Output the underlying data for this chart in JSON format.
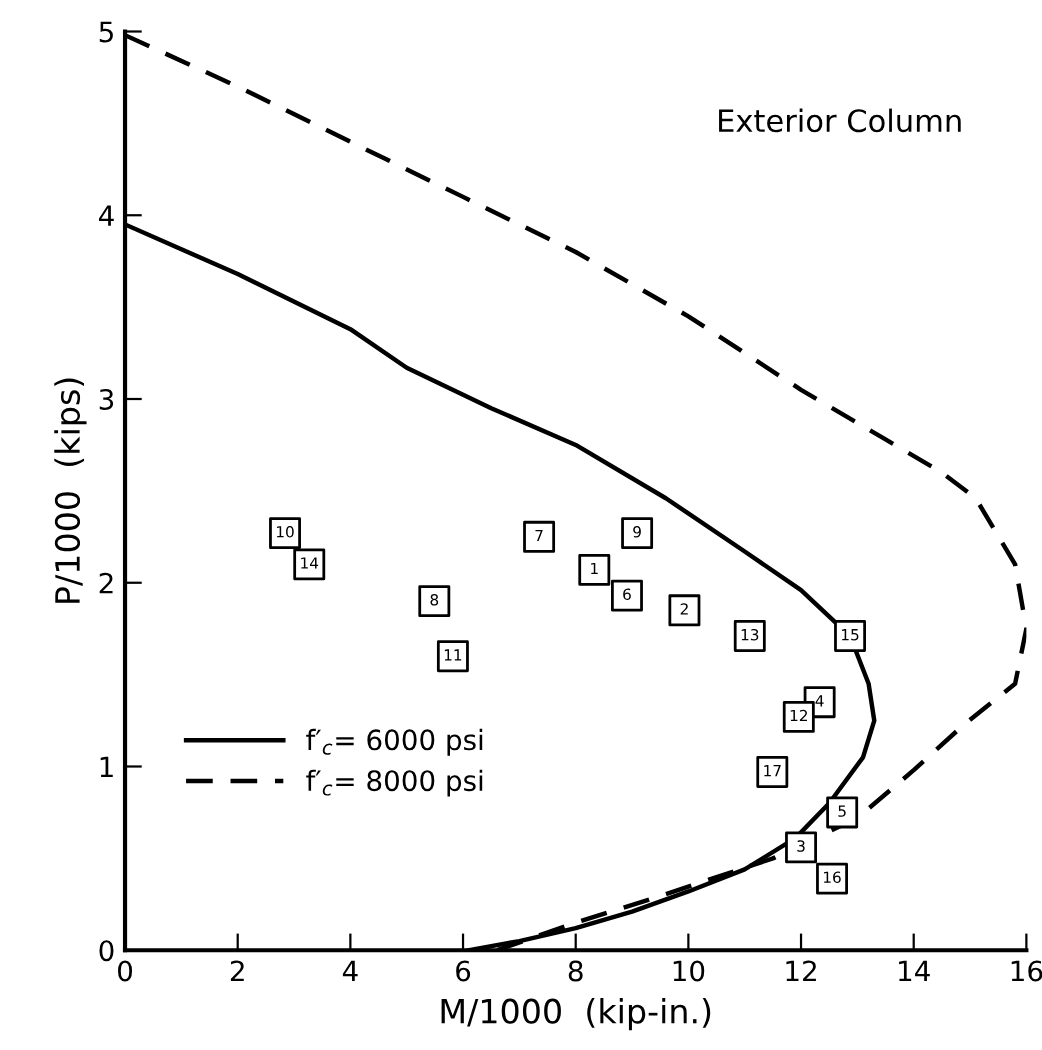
{
  "chart_data": {
    "type": "line",
    "xlabel": "M/1000  (kip-in.)",
    "ylabel": "P/1000  (kips)",
    "xlim": [
      0,
      16
    ],
    "ylim": [
      0,
      5
    ],
    "xticks": [
      0,
      2,
      4,
      6,
      8,
      10,
      12,
      14,
      16
    ],
    "yticks": [
      0,
      1,
      2,
      3,
      4,
      5
    ],
    "grid": false,
    "legend": "bottom left",
    "marker": "none",
    "series": [
      {
        "name": "f′$_{c}$= 6000 psi",
        "line_style": "solid",
        "color": "#000000",
        "x": [
          0,
          2,
          4,
          5,
          6.5,
          8,
          9.6,
          11,
          12,
          12.87,
          13.2,
          13.3,
          13.1,
          12.5,
          11.9,
          11,
          10,
          9,
          8,
          7,
          6.1
        ],
        "values": [
          3.95,
          3.68,
          3.38,
          3.17,
          2.95,
          2.75,
          2.46,
          2.17,
          1.96,
          1.71,
          1.45,
          1.25,
          1.05,
          0.8,
          0.61,
          0.44,
          0.32,
          0.21,
          0.12,
          0.05,
          0
        ]
      },
      {
        "name": "f′$_{c}$= 8000 psi",
        "line_style": "dashed",
        "color": "#000000",
        "x": [
          0,
          2,
          4,
          6,
          8,
          10,
          12,
          13.5,
          14.5,
          15.1,
          15.8,
          16,
          15.8,
          14.9,
          14,
          13,
          11.5,
          9.35,
          8,
          6.6
        ],
        "values": [
          4.98,
          4.7,
          4.4,
          4.1,
          3.8,
          3.45,
          3.05,
          2.78,
          2.6,
          2.46,
          2.1,
          1.75,
          1.45,
          1.23,
          0.98,
          0.72,
          0.5,
          0.28,
          0.15,
          0
        ]
      },
      {
        "type": "scatter",
        "marker": "square",
        "color": "#000000",
        "x": [
          2.84,
          3.27,
          5.49,
          5.82,
          7.35,
          8.33,
          9.09,
          8.91,
          9.93,
          11.09,
          12.87,
          12.33,
          11.96,
          11.49,
          12.73,
          12.0,
          12.55
        ],
        "values": [
          2.27,
          2.1,
          1.9,
          1.6,
          2.25,
          2.07,
          2.27,
          1.93,
          1.85,
          1.71,
          1.71,
          1.35,
          1.27,
          0.97,
          0.75,
          0.56,
          0.39
        ]
      }
    ],
    "annotations": [
      "Exterior Column",
      {
        "text": "10",
        "x": 2.84,
        "y": 2.27
      },
      {
        "text": "14",
        "x": 3.27,
        "y": 2.1
      },
      {
        "text": "8",
        "x": 5.49,
        "y": 1.9
      },
      {
        "text": "11",
        "x": 5.82,
        "y": 1.6
      },
      {
        "text": "7",
        "x": 7.35,
        "y": 2.25
      },
      {
        "text": "1",
        "x": 8.33,
        "y": 2.07
      },
      {
        "text": "9",
        "x": 9.09,
        "y": 2.27
      },
      {
        "text": "6",
        "x": 8.91,
        "y": 1.93
      },
      {
        "text": "2",
        "x": 9.93,
        "y": 1.85
      },
      {
        "text": "13",
        "x": 11.09,
        "y": 1.71
      },
      {
        "text": "15",
        "x": 12.87,
        "y": 1.71
      },
      {
        "text": "4",
        "x": 12.33,
        "y": 1.35
      },
      {
        "text": "12",
        "x": 11.96,
        "y": 1.27
      },
      {
        "text": "17",
        "x": 11.49,
        "y": 0.97
      },
      {
        "text": "5",
        "x": 12.73,
        "y": 0.75
      },
      {
        "text": "3",
        "x": 12.0,
        "y": 0.56
      },
      {
        "text": "16",
        "x": 12.55,
        "y": 0.39
      }
    ]
  }
}
